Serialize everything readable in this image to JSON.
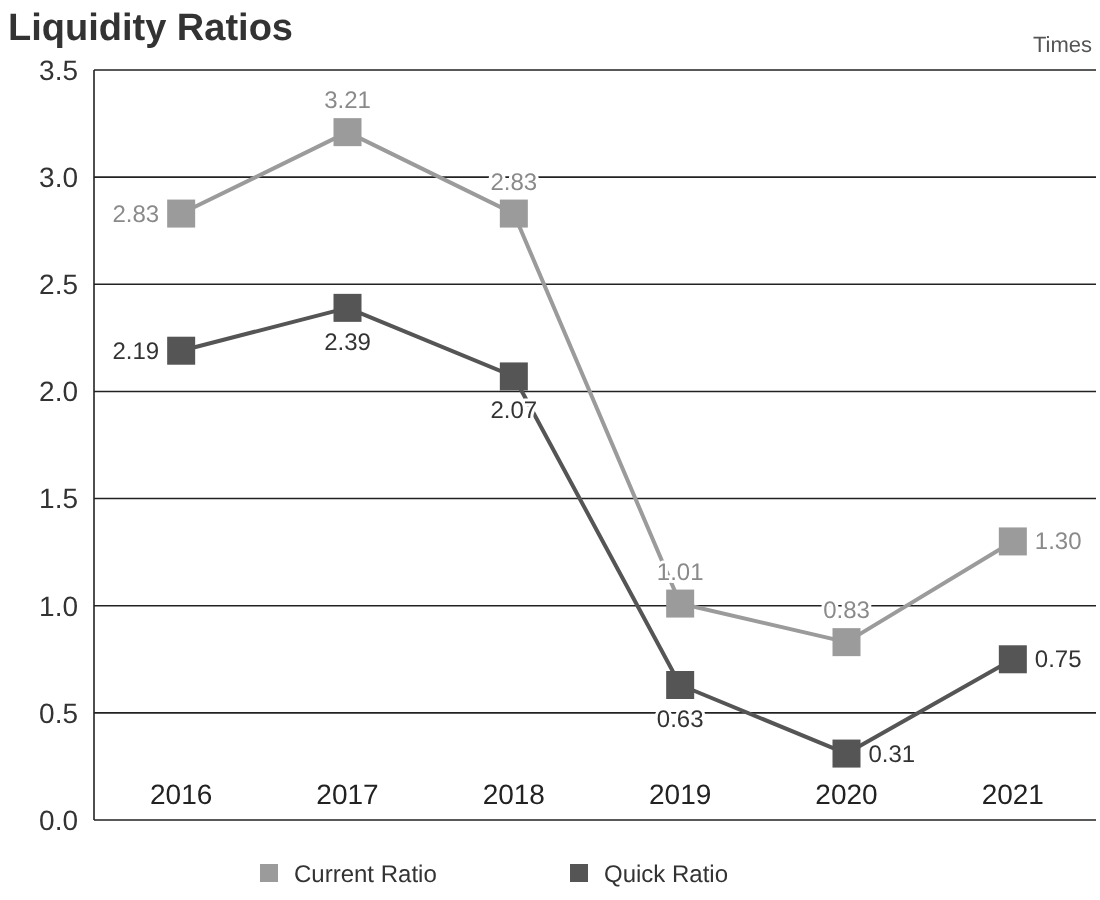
{
  "chart_data": {
    "type": "line",
    "title": "Liquidity Ratios",
    "ylabel": "Times",
    "categories": [
      "2016",
      "2017",
      "2018",
      "2019",
      "2020",
      "2021"
    ],
    "series": [
      {
        "name": "Current Ratio",
        "color": "#9b9b9b",
        "values": [
          2.83,
          3.21,
          2.83,
          1.01,
          0.83,
          1.3
        ]
      },
      {
        "name": "Quick Ratio",
        "color": "#555555",
        "values": [
          2.19,
          2.39,
          2.07,
          0.63,
          0.31,
          0.75
        ]
      }
    ],
    "value_labels": [
      [
        "2.83",
        "3.21",
        "2.83",
        "1.01",
        "0.83",
        "1.30"
      ],
      [
        "2.19",
        "2.39",
        "2.07",
        "0.63",
        "0.31",
        "0.75"
      ]
    ],
    "ylim": [
      0,
      3.5
    ],
    "yticks": [
      {
        "value": 0,
        "label": "0.0"
      },
      {
        "value": 0.5,
        "label": "0.5"
      },
      {
        "value": 1,
        "label": "1.0"
      },
      {
        "value": 1.5,
        "label": "1.5"
      },
      {
        "value": 2,
        "label": "2.0"
      },
      {
        "value": 2.5,
        "label": "2.5"
      },
      {
        "value": 3,
        "label": "3.0"
      },
      {
        "value": 3.5,
        "label": "3.5"
      }
    ],
    "grid": "y",
    "legend": "bottom",
    "marker": "square",
    "line_style": "solid"
  }
}
